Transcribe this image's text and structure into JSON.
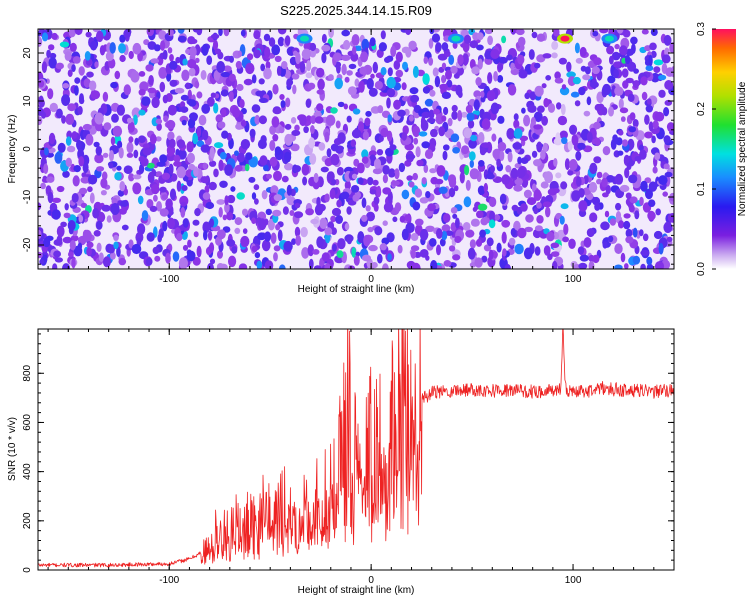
{
  "title": "S225.2025.344.14.15.R09",
  "colors": {
    "line": "#ee2222",
    "background": "#ffffff"
  },
  "chart_data": [
    {
      "type": "heatmap",
      "title": "S225.2025.344.14.15.R09",
      "xlabel": "Height of straight line (km)",
      "ylabel": "Frequency (Hz)",
      "xlim": [
        -165,
        150
      ],
      "ylim": [
        -25,
        25
      ],
      "xticks": [
        "-100",
        "0",
        "100"
      ],
      "yticks": [
        "-20",
        "-10",
        "0",
        "10",
        "20"
      ],
      "colorbar": {
        "label": "Normalized spectral amplitude",
        "range": [
          0.0,
          0.3
        ],
        "ticks": [
          "0.0",
          "0.1",
          "0.2",
          "0.3"
        ],
        "colormap": "rainbow (white-purple-blue-cyan-green-yellow-red)"
      },
      "description_values": {
        "dominant_level": "0.02-0.07 (purple/blue speckle)",
        "peaks": [
          {
            "x": 96,
            "y": 23,
            "value": 0.3
          },
          {
            "x": 42,
            "y": 23,
            "value": 0.14
          },
          {
            "x": -33,
            "y": 23,
            "value": 0.14
          },
          {
            "x": 118,
            "y": 23,
            "value": 0.14
          }
        ]
      }
    },
    {
      "type": "line",
      "xlabel": "Height of straight line (km)",
      "ylabel": "SNR (10 * v/v)",
      "xlim": [
        -165,
        150
      ],
      "ylim": [
        0,
        980
      ],
      "xticks": [
        "-100",
        "0",
        "100"
      ],
      "yticks": [
        "0",
        "200",
        "400",
        "600",
        "800"
      ],
      "series": [
        {
          "x": [
            -165,
            -130,
            -100,
            -90,
            -82,
            -78,
            -70,
            -60,
            -50,
            -40,
            -30,
            -22,
            -15,
            -12,
            -11,
            -10,
            -9,
            -8,
            -5,
            0,
            5,
            10,
            15,
            18,
            25,
            30,
            40,
            50,
            60,
            70,
            80,
            90,
            94,
            95,
            96,
            97,
            100,
            110,
            115,
            120,
            130,
            140,
            150
          ],
          "y": [
            20,
            20,
            25,
            45,
            80,
            140,
            170,
            210,
            230,
            250,
            280,
            300,
            420,
            600,
            910,
            650,
            500,
            430,
            420,
            480,
            540,
            590,
            620,
            650,
            690,
            720,
            730,
            735,
            730,
            730,
            725,
            730,
            740,
            980,
            760,
            730,
            725,
            730,
            740,
            735,
            730,
            725,
            730
          ]
        }
      ]
    }
  ]
}
